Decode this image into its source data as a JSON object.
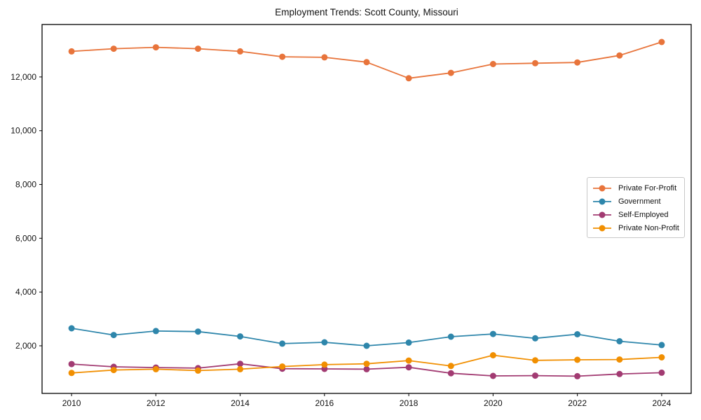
{
  "figure": {
    "background": "#ffffff",
    "text_color": "#111111",
    "spine_color": "#000000"
  },
  "chart_data": {
    "type": "line",
    "title": "Employment Trends: Scott County, Missouri",
    "xlabel": "",
    "ylabel": "",
    "x": [
      2010,
      2011,
      2012,
      2013,
      2014,
      2015,
      2016,
      2017,
      2018,
      2019,
      2020,
      2021,
      2022,
      2023,
      2024
    ],
    "series": [
      {
        "name": "Private For-Profit",
        "color": "#e8743b",
        "values": [
          12950,
          13050,
          13100,
          13050,
          12950,
          12750,
          12730,
          12550,
          11950,
          12150,
          12480,
          12510,
          12540,
          12800,
          13300
        ]
      },
      {
        "name": "Government",
        "color": "#2e86ab",
        "values": [
          2650,
          2400,
          2550,
          2530,
          2350,
          2080,
          2130,
          2000,
          2120,
          2340,
          2440,
          2280,
          2430,
          2170,
          2030
        ]
      },
      {
        "name": "Self-Employed",
        "color": "#a23b72",
        "values": [
          1320,
          1220,
          1190,
          1170,
          1330,
          1150,
          1140,
          1130,
          1200,
          980,
          880,
          890,
          870,
          950,
          1000
        ]
      },
      {
        "name": "Private Non-Profit",
        "color": "#f18f01",
        "values": [
          990,
          1100,
          1130,
          1080,
          1130,
          1230,
          1300,
          1330,
          1450,
          1250,
          1650,
          1460,
          1480,
          1490,
          1570
        ]
      }
    ],
    "xticks": [
      2010,
      2012,
      2014,
      2016,
      2018,
      2020,
      2022,
      2024
    ],
    "yticks": [
      2000,
      4000,
      6000,
      8000,
      10000,
      12000
    ],
    "ytick_labels": [
      "2,000",
      "4,000",
      "6,000",
      "8,000",
      "10,000",
      "12,000"
    ],
    "xlim": [
      2009.3,
      2024.7
    ],
    "ylim": [
      230,
      13950
    ],
    "grid": "off",
    "legend_position": "center-right"
  }
}
